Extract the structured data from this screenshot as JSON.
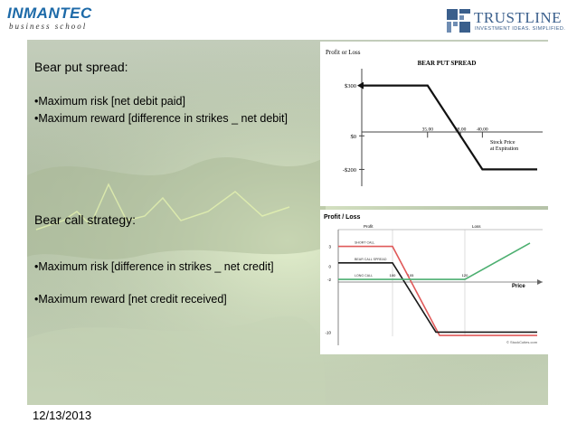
{
  "header": {
    "left_logo": {
      "brand": "INMANTEC",
      "subtitle": "business school",
      "icon": "inmantec-logo"
    },
    "right_logo": {
      "brand": "TRUSTLINE",
      "tagline": "INVESTMENT IDEAS. SIMPLIFIED.",
      "icon": "trustline-logo-icon"
    }
  },
  "slide": {
    "section1": {
      "title": "Bear put spread:",
      "bullets": [
        "•Maximum risk [net debit paid]",
        "•Maximum reward [difference in strikes _ net debit]"
      ]
    },
    "section2": {
      "title": "Bear call strategy:",
      "bullets": [
        "•Maximum risk [difference in strikes _ net credit]",
        "•Maximum reward [net credit received]"
      ]
    }
  },
  "chart_data": [
    {
      "type": "line",
      "title": "BEAR PUT SPREAD",
      "ylabel": "Profit or Loss",
      "xlabel": "Stock Price at Expiration",
      "x_ticks": [
        "35.00",
        "38.00",
        "40.00"
      ],
      "y_ticks": [
        "$300",
        "$0",
        "-$200"
      ],
      "ylim": [
        -300,
        400
      ],
      "series": [
        {
          "values": [
            [
              29,
              300
            ],
            [
              35,
              300
            ],
            [
              40,
              -200
            ],
            [
              45,
              -200
            ]
          ]
        }
      ],
      "colors": {
        "line": "#111111",
        "axis": "#444444"
      }
    },
    {
      "type": "line",
      "title": "Profit / Loss",
      "xlabel": "Price",
      "region_labels": [
        "Profit",
        "Loss"
      ],
      "y_ticks": [
        "3",
        "0",
        "-2",
        "-10"
      ],
      "x_ticks": [
        "100",
        "105",
        "120"
      ],
      "ylim": [
        -12,
        5
      ],
      "series": [
        {
          "name": "SHORT CALL",
          "color": "#e05a5a",
          "values": [
            [
              85,
              3
            ],
            [
              100,
              3
            ],
            [
              113,
              -10.5
            ],
            [
              140,
              -10.5
            ]
          ]
        },
        {
          "name": "BEAR CALL SPREAD",
          "color": "#1a1a1a",
          "values": [
            [
              85,
              0.5
            ],
            [
              100,
              0.5
            ],
            [
              112,
              -10
            ],
            [
              140,
              -10
            ]
          ]
        },
        {
          "name": "LONG CALL",
          "color": "#4caf70",
          "values": [
            [
              85,
              -2
            ],
            [
              120,
              -2
            ],
            [
              138,
              3.5
            ]
          ]
        }
      ],
      "footer": "© StockCuties.com"
    }
  ],
  "footer": {
    "date": "12/13/2013"
  }
}
